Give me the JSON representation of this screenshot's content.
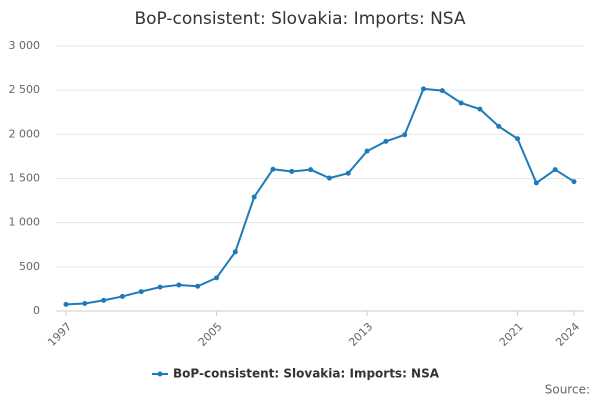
{
  "chart_data": {
    "type": "line",
    "title": "BoP-consistent: Slovakia: Imports: NSA",
    "x": [
      1997,
      1998,
      1999,
      2000,
      2001,
      2002,
      2003,
      2004,
      2005,
      2006,
      2007,
      2008,
      2009,
      2010,
      2011,
      2012,
      2013,
      2014,
      2015,
      2016,
      2017,
      2018,
      2019,
      2020,
      2021,
      2022,
      2023,
      2024
    ],
    "series": [
      {
        "name": "BoP-consistent: Slovakia: Imports: NSA",
        "color": "#1f7ab8",
        "values": [
          75,
          85,
          120,
          165,
          220,
          270,
          295,
          280,
          375,
          670,
          1290,
          1605,
          1580,
          1600,
          1505,
          1560,
          1810,
          1920,
          1995,
          2515,
          2495,
          2355,
          2285,
          2090,
          1950,
          1450,
          1600,
          1465
        ]
      }
    ],
    "xlim": [
      1997,
      2024
    ],
    "xticks": [
      1997,
      2005,
      2013,
      2021,
      2024
    ],
    "ylim": [
      0,
      3000
    ],
    "yticks": [
      0,
      500,
      {
        "value": 1000,
        "label": "1 000"
      },
      {
        "value": 1500,
        "label": "1 500"
      },
      {
        "value": 2000,
        "label": "2 000"
      },
      {
        "value": 2500,
        "label": "2 500"
      },
      {
        "value": 3000,
        "label": "3 000"
      }
    ],
    "grid": true,
    "source": "Source:"
  }
}
